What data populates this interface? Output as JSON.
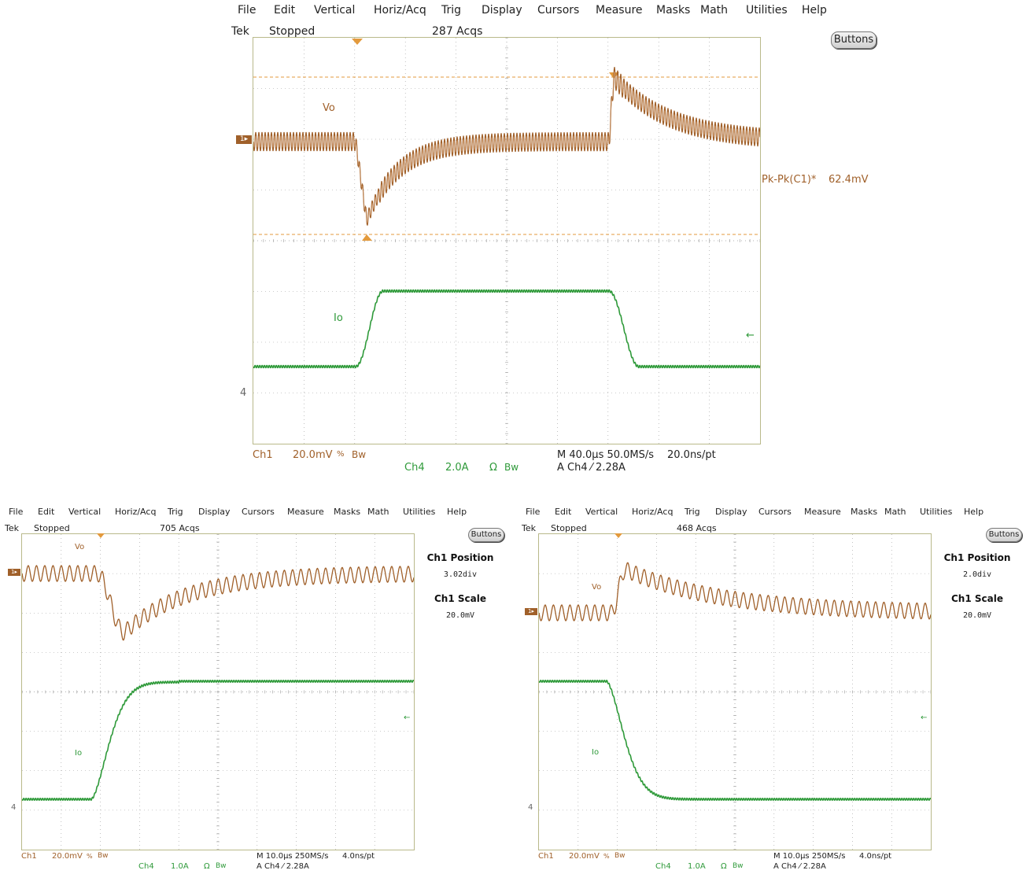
{
  "menu": [
    "File",
    "Edit",
    "Vertical",
    "Horiz/Acq",
    "Trig",
    "Display",
    "Cursors",
    "Measure",
    "Masks",
    "Math",
    "Utilities",
    "Help"
  ],
  "colors": {
    "ch1": "#a0602a",
    "ch4": "#2f9a3a",
    "grid": "#b9b98a",
    "cursor": "#e39a3c"
  },
  "top": {
    "tek": "Tek",
    "status": "Stopped",
    "acqs": "287 Acqs",
    "buttons": "Buttons",
    "vo_label": "Vo",
    "io_label": "Io",
    "meas_label": "Pk-Pk(C1)*",
    "meas_value": "62.4mV",
    "ch4_marker": "4",
    "readout": {
      "ch1": "Ch1",
      "ch1_scale": "20.0mV",
      "ch1_sym": "%",
      "bw1": "Bw",
      "ch4": "Ch4",
      "ch4_scale": "2.0A",
      "ch4_sym": "Ω",
      "bw4": "Bw",
      "time": "M 40.0µs 50.0MS/s",
      "res": "20.0ns/pt",
      "trig": "A  Ch4  ⁄  2.28A"
    }
  },
  "left": {
    "tek": "Tek",
    "status": "Stopped",
    "acqs": "705 Acqs",
    "buttons": "Buttons",
    "vo_label": "Vo",
    "io_label": "Io",
    "ch4_marker": "4",
    "side": {
      "pos_title": "Ch1 Position",
      "pos_val": "3.02div",
      "scale_title": "Ch1 Scale",
      "scale_val": "20.0mV"
    },
    "readout": {
      "ch1": "Ch1",
      "ch1_scale": "20.0mV",
      "ch1_sym": "%",
      "bw1": "Bw",
      "ch4": "Ch4",
      "ch4_scale": "1.0A",
      "ch4_sym": "Ω",
      "bw4": "Bw",
      "time": "M 10.0µs 250MS/s",
      "res": "4.0ns/pt",
      "trig": "A  Ch4  ⁄  2.28A"
    }
  },
  "right": {
    "tek": "Tek",
    "status": "Stopped",
    "acqs": "468 Acqs",
    "buttons": "Buttons",
    "vo_label": "Vo",
    "io_label": "Io",
    "ch4_marker": "4",
    "side": {
      "pos_title": "Ch1 Position",
      "pos_val": "2.0div",
      "scale_title": "Ch1 Scale",
      "scale_val": "20.0mV"
    },
    "readout": {
      "ch1": "Ch1",
      "ch1_scale": "20.0mV",
      "ch1_sym": "%",
      "bw1": "Bw",
      "ch4": "Ch4",
      "ch4_scale": "1.0A",
      "ch4_sym": "Ω",
      "bw4": "Bw",
      "time": "M 10.0µs 250MS/s",
      "res": "4.0ns/pt",
      "trig": "A  Ch4  ⁄  2.28A"
    }
  }
}
